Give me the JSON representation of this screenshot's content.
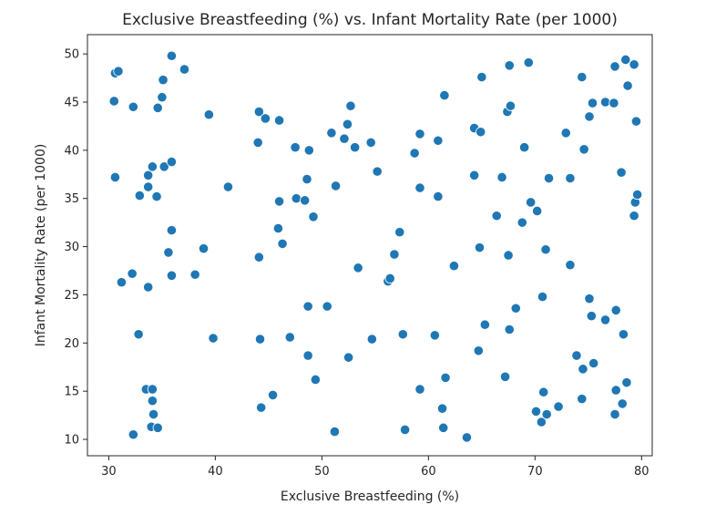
{
  "chart_data": {
    "type": "scatter",
    "title": "Exclusive Breastfeeding (%) vs. Infant Mortality Rate (per 1000)",
    "xlabel": "Exclusive Breastfeeding (%)",
    "ylabel": "Infant Mortality Rate (per 1000)",
    "xlim": [
      28,
      81
    ],
    "ylim": [
      8.3,
      52
    ],
    "xticks": [
      30,
      40,
      50,
      60,
      70,
      80
    ],
    "yticks": [
      10,
      15,
      20,
      25,
      30,
      35,
      40,
      45,
      50
    ],
    "grid": false,
    "point_color": "#1f77b4",
    "points": [
      [
        30.6,
        48.0
      ],
      [
        30.9,
        48.2
      ],
      [
        30.5,
        45.1
      ],
      [
        30.6,
        37.2
      ],
      [
        31.2,
        26.3
      ],
      [
        32.2,
        27.2
      ],
      [
        32.3,
        44.5
      ],
      [
        32.3,
        10.5
      ],
      [
        32.8,
        20.9
      ],
      [
        32.9,
        35.3
      ],
      [
        33.5,
        15.2
      ],
      [
        33.7,
        36.2
      ],
      [
        33.7,
        37.4
      ],
      [
        33.7,
        25.8
      ],
      [
        34.0,
        11.3
      ],
      [
        34.1,
        38.3
      ],
      [
        34.1,
        15.2
      ],
      [
        34.1,
        14.0
      ],
      [
        34.2,
        12.6
      ],
      [
        34.5,
        35.2
      ],
      [
        34.6,
        44.4
      ],
      [
        34.6,
        11.2
      ],
      [
        35.0,
        45.5
      ],
      [
        35.1,
        47.3
      ],
      [
        35.2,
        38.3
      ],
      [
        35.6,
        29.4
      ],
      [
        35.9,
        49.8
      ],
      [
        35.9,
        38.8
      ],
      [
        35.9,
        31.7
      ],
      [
        35.9,
        27.0
      ],
      [
        37.1,
        48.4
      ],
      [
        38.1,
        27.1
      ],
      [
        38.9,
        29.8
      ],
      [
        39.4,
        43.7
      ],
      [
        39.8,
        20.5
      ],
      [
        41.2,
        36.2
      ],
      [
        44.0,
        40.8
      ],
      [
        44.1,
        44.0
      ],
      [
        44.2,
        20.4
      ],
      [
        44.1,
        28.9
      ],
      [
        44.3,
        13.3
      ],
      [
        44.7,
        43.3
      ],
      [
        45.4,
        14.6
      ],
      [
        46.0,
        43.1
      ],
      [
        46.0,
        34.7
      ],
      [
        45.9,
        31.9
      ],
      [
        46.3,
        30.3
      ],
      [
        47.0,
        20.6
      ],
      [
        47.5,
        40.3
      ],
      [
        47.6,
        35.0
      ],
      [
        48.4,
        34.8
      ],
      [
        48.6,
        37.0
      ],
      [
        48.7,
        23.8
      ],
      [
        48.7,
        18.7
      ],
      [
        48.8,
        40.0
      ],
      [
        49.2,
        33.1
      ],
      [
        49.4,
        16.2
      ],
      [
        50.5,
        23.8
      ],
      [
        50.9,
        41.8
      ],
      [
        51.2,
        10.8
      ],
      [
        51.3,
        36.3
      ],
      [
        52.1,
        41.2
      ],
      [
        52.4,
        42.7
      ],
      [
        52.5,
        18.5
      ],
      [
        52.7,
        44.6
      ],
      [
        53.1,
        40.3
      ],
      [
        53.4,
        27.8
      ],
      [
        54.6,
        40.8
      ],
      [
        54.7,
        20.4
      ],
      [
        55.2,
        37.8
      ],
      [
        56.2,
        26.4
      ],
      [
        56.4,
        26.7
      ],
      [
        56.8,
        29.2
      ],
      [
        57.3,
        31.5
      ],
      [
        57.6,
        20.9
      ],
      [
        57.8,
        11.0
      ],
      [
        58.7,
        39.7
      ],
      [
        59.2,
        41.7
      ],
      [
        59.2,
        36.1
      ],
      [
        59.2,
        15.2
      ],
      [
        60.6,
        20.8
      ],
      [
        60.9,
        41.0
      ],
      [
        60.9,
        35.2
      ],
      [
        61.3,
        13.2
      ],
      [
        61.4,
        11.2
      ],
      [
        61.5,
        45.7
      ],
      [
        61.6,
        16.4
      ],
      [
        62.4,
        28.0
      ],
      [
        63.6,
        10.2
      ],
      [
        64.3,
        42.3
      ],
      [
        64.3,
        37.4
      ],
      [
        64.7,
        19.2
      ],
      [
        64.8,
        29.9
      ],
      [
        64.9,
        41.9
      ],
      [
        65.0,
        47.6
      ],
      [
        65.3,
        21.9
      ],
      [
        66.4,
        33.2
      ],
      [
        66.9,
        37.2
      ],
      [
        67.2,
        16.5
      ],
      [
        67.4,
        44.0
      ],
      [
        67.5,
        29.1
      ],
      [
        67.6,
        21.4
      ],
      [
        67.6,
        48.8
      ],
      [
        67.7,
        44.6
      ],
      [
        68.2,
        23.6
      ],
      [
        68.8,
        32.5
      ],
      [
        69.0,
        40.3
      ],
      [
        69.4,
        49.1
      ],
      [
        69.6,
        34.6
      ],
      [
        70.1,
        12.9
      ],
      [
        70.2,
        33.7
      ],
      [
        70.6,
        11.8
      ],
      [
        70.7,
        24.8
      ],
      [
        70.8,
        14.9
      ],
      [
        71.0,
        29.7
      ],
      [
        71.1,
        12.6
      ],
      [
        71.3,
        37.1
      ],
      [
        72.2,
        13.4
      ],
      [
        72.9,
        41.8
      ],
      [
        73.3,
        37.1
      ],
      [
        73.3,
        28.1
      ],
      [
        73.9,
        18.7
      ],
      [
        74.4,
        14.2
      ],
      [
        74.4,
        47.6
      ],
      [
        74.5,
        17.3
      ],
      [
        74.6,
        40.1
      ],
      [
        75.1,
        24.6
      ],
      [
        75.1,
        43.5
      ],
      [
        75.3,
        22.8
      ],
      [
        75.4,
        44.9
      ],
      [
        75.5,
        17.9
      ],
      [
        76.6,
        45.0
      ],
      [
        76.6,
        22.4
      ],
      [
        77.4,
        44.9
      ],
      [
        77.5,
        48.7
      ],
      [
        77.5,
        12.6
      ],
      [
        77.6,
        15.1
      ],
      [
        77.6,
        23.4
      ],
      [
        78.1,
        37.7
      ],
      [
        78.2,
        13.7
      ],
      [
        78.3,
        20.9
      ],
      [
        78.5,
        49.4
      ],
      [
        78.6,
        15.9
      ],
      [
        78.7,
        46.7
      ],
      [
        79.3,
        33.2
      ],
      [
        79.3,
        48.9
      ],
      [
        79.4,
        34.6
      ],
      [
        79.5,
        43.0
      ],
      [
        79.6,
        35.4
      ]
    ]
  }
}
